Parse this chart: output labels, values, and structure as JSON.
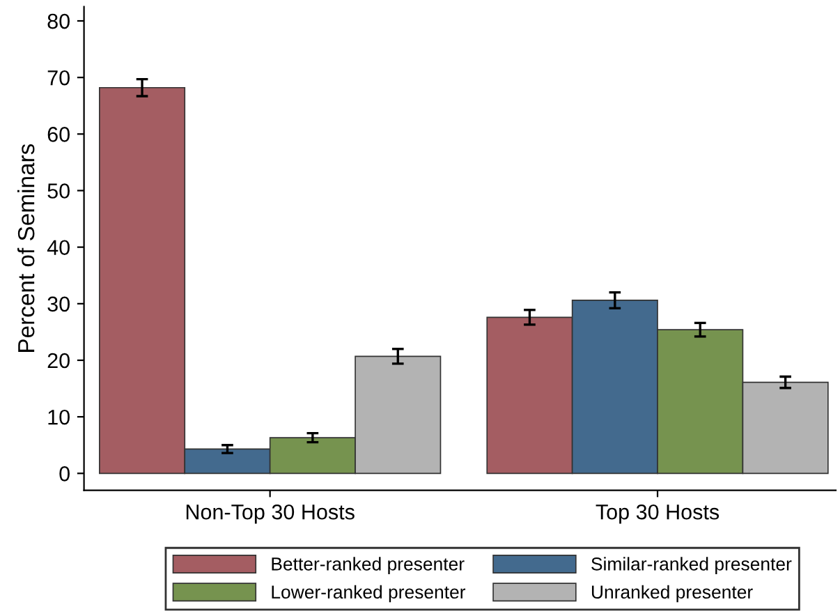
{
  "chart_data": {
    "type": "bar",
    "ylabel": "Percent of Seminars",
    "categories": [
      "Non-Top 30 Hosts",
      "Top 30 Hosts"
    ],
    "series": [
      {
        "name": "Better-ranked presenter",
        "color": "#a45d62",
        "values": [
          68.2,
          27.6
        ],
        "errors": [
          1.5,
          1.3
        ]
      },
      {
        "name": "Similar-ranked presenter",
        "color": "#436a8e",
        "values": [
          4.3,
          30.6
        ],
        "errors": [
          0.7,
          1.4
        ]
      },
      {
        "name": "Lower-ranked presenter",
        "color": "#76934f",
        "values": [
          6.3,
          25.4
        ],
        "errors": [
          0.8,
          1.2
        ]
      },
      {
        "name": "Unranked presenter",
        "color": "#b3b3b3",
        "values": [
          20.7,
          16.1
        ],
        "errors": [
          1.3,
          1.0
        ]
      }
    ],
    "ylim": [
      -3,
      82.5
    ],
    "yticks": [
      0,
      10,
      20,
      30,
      40,
      50,
      60,
      70,
      80
    ],
    "grid": false,
    "legend": "bottom"
  }
}
